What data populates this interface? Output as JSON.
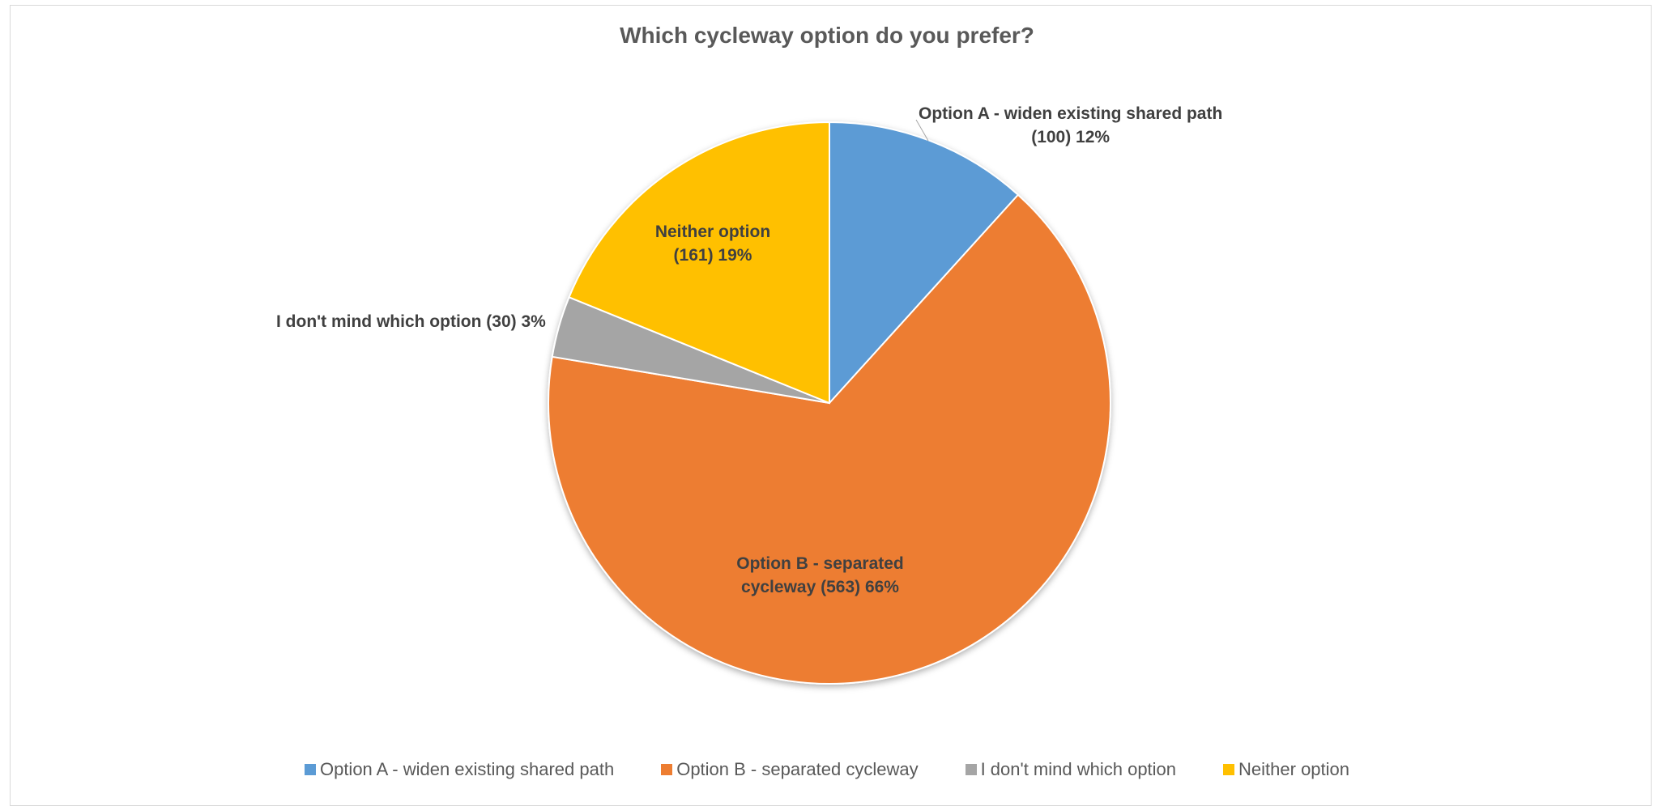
{
  "chart_data": {
    "type": "pie",
    "title": "Which cycleway option do you prefer?",
    "slices": [
      {
        "label": "Option A - widen existing shared path",
        "value": 100,
        "percent": "12%",
        "color": "#5B9BD5",
        "data_label": "Option A - widen existing shared path\n(100) 12%"
      },
      {
        "label": "Option B - separated cycleway",
        "value": 563,
        "percent": "66%",
        "color": "#ED7D31",
        "data_label": "Option B - separated\ncycleway (563) 66%"
      },
      {
        "label": "I don't mind which option",
        "value": 30,
        "percent": "3%",
        "color": "#A5A5A5",
        "data_label": "I don't mind which option (30) 3%"
      },
      {
        "label": "Neither option",
        "value": 161,
        "percent": "19%",
        "color": "#FFC000",
        "data_label": "Neither option\n(161) 19%"
      }
    ],
    "legend_position": "bottom"
  }
}
